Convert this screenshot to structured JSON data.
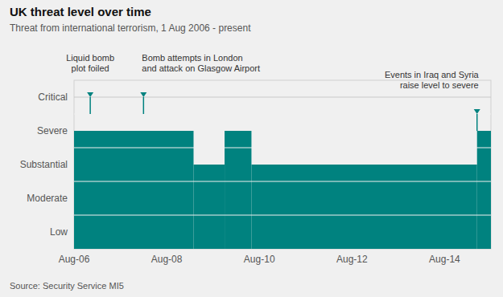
{
  "chart_data": {
    "type": "step",
    "title": "UK threat level over time",
    "subtitle": "Threat from international terrorism, 1 Aug 2006 - present",
    "source": "Source: Security Service MI5",
    "color": "#00827F",
    "x": [
      2006.0,
      2008.58,
      2009.25,
      2009.83,
      2014.7
    ],
    "values": [
      4,
      3,
      4,
      3,
      4
    ],
    "xlim": [
      2006.0,
      2015.0
    ],
    "ylim": [
      0.5,
      5.5
    ],
    "xticks": [
      {
        "value": 2006,
        "label": "Aug-06"
      },
      {
        "value": 2008,
        "label": "Aug-08"
      },
      {
        "value": 2010,
        "label": "Aug-10"
      },
      {
        "value": 2012,
        "label": "Aug-12"
      },
      {
        "value": 2014,
        "label": "Aug-14"
      }
    ],
    "yticks": [
      {
        "value": 1,
        "label": "Low"
      },
      {
        "value": 2,
        "label": "Moderate"
      },
      {
        "value": 3,
        "label": "Substantial"
      },
      {
        "value": 4,
        "label": "Severe"
      },
      {
        "value": 5,
        "label": "Critical"
      }
    ],
    "annotations": [
      {
        "text": "Liquid bomb\nplot foiled",
        "x": 2006.35,
        "y": 5.0
      },
      {
        "text": "Bomb attempts in London\nand attack on Glasgow Airport",
        "x": 2007.5,
        "y": 5.0
      },
      {
        "text": "Events in Iraq and Syria\nraise level to severe",
        "x": 2014.7,
        "y": 4.5
      }
    ]
  }
}
